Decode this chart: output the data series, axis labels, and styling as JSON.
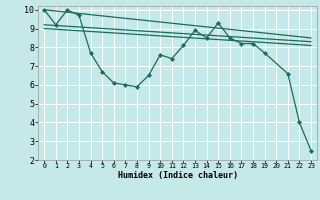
{
  "xlabel": "Humidex (Indice chaleur)",
  "ylabel": "",
  "background_color": "#c5e8e8",
  "grid_color": "#ffffff",
  "line_color": "#1a6b5a",
  "xlim": [
    -0.5,
    23.5
  ],
  "ylim": [
    2,
    10.2
  ],
  "xticks": [
    0,
    1,
    2,
    3,
    4,
    5,
    6,
    7,
    8,
    9,
    10,
    11,
    12,
    13,
    14,
    15,
    16,
    17,
    18,
    19,
    20,
    21,
    22,
    23
  ],
  "yticks": [
    2,
    3,
    4,
    5,
    6,
    7,
    8,
    9,
    10
  ],
  "series": [
    {
      "x": [
        0,
        1,
        2,
        3,
        4,
        5,
        6,
        7,
        8,
        9,
        10,
        11,
        12,
        13,
        14,
        15,
        16,
        17,
        18,
        19,
        21,
        22,
        23
      ],
      "y": [
        10.0,
        9.2,
        10.0,
        9.7,
        7.7,
        6.7,
        6.1,
        6.0,
        5.9,
        6.5,
        7.6,
        7.4,
        8.1,
        8.9,
        8.5,
        9.3,
        8.5,
        8.2,
        8.2,
        7.7,
        6.6,
        4.0,
        2.5
      ],
      "marker": true
    },
    {
      "x": [
        0,
        23
      ],
      "y": [
        10.0,
        8.5
      ],
      "marker": false
    },
    {
      "x": [
        0,
        23
      ],
      "y": [
        9.2,
        8.3
      ],
      "marker": false
    },
    {
      "x": [
        0,
        23
      ],
      "y": [
        9.0,
        8.1
      ],
      "marker": false
    }
  ]
}
